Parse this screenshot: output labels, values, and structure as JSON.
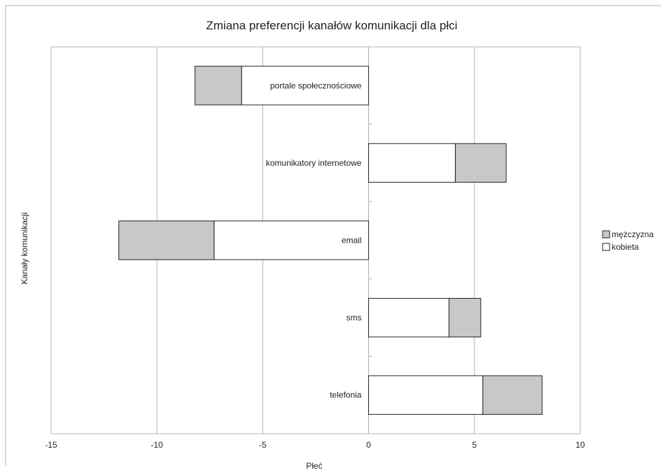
{
  "chart_data": {
    "type": "bar",
    "orientation": "horizontal",
    "stacked": true,
    "title": "Zmiana preferencji kanałów komunikacji dla płci",
    "xlabel": "Płeć",
    "ylabel": "Kanały komunikacji",
    "xlim": [
      -15,
      10
    ],
    "xticks": [
      "-15",
      "-10",
      "-5",
      "0",
      "5",
      "10"
    ],
    "grid": "vertical",
    "legend_position": "right",
    "categories": [
      "portale społecznościowe",
      "komunikatory internetowe",
      "email",
      "sms",
      "telefonia"
    ],
    "series": [
      {
        "name": "kobieta",
        "color": "#ffffff",
        "values": [
          -6,
          4.1,
          -7.3,
          3.8,
          5.4
        ]
      },
      {
        "name": "mężczyzna",
        "color": "#c8c8c8",
        "values": [
          -2.2,
          2.4,
          -4.5,
          1.5,
          2.8
        ]
      }
    ],
    "legend": [
      "mężczyzna",
      "kobieta"
    ]
  }
}
